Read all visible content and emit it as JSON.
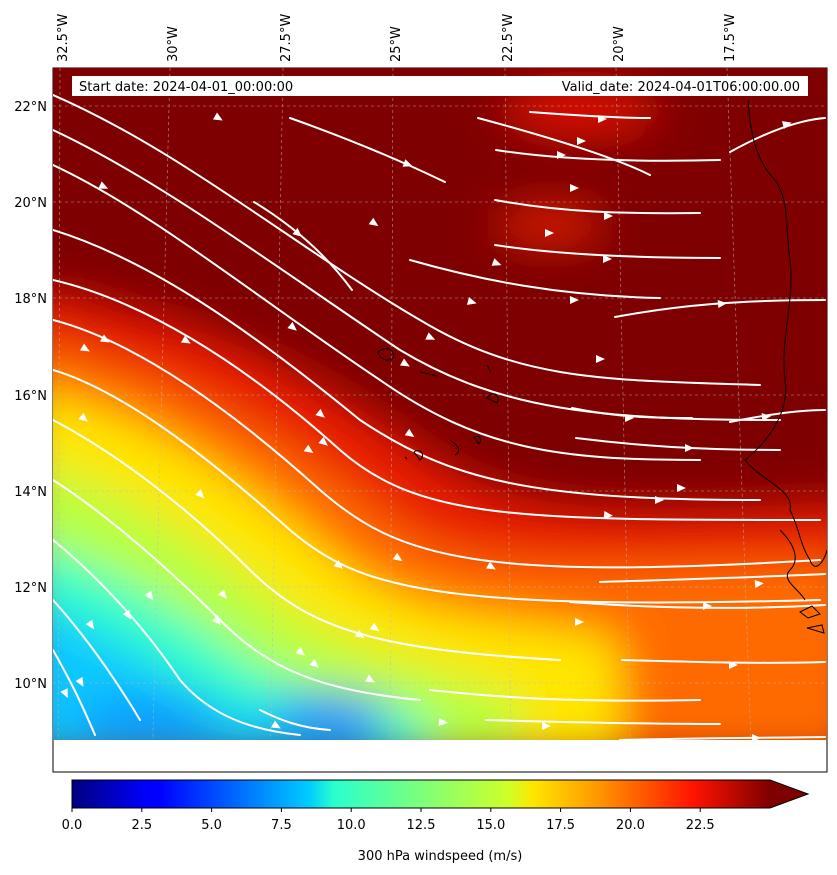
{
  "header": {
    "start_date": "Start date: 2024-04-01_00:00:00",
    "valid_date": "Valid_date: 2024-04-01T06:00:00.00"
  },
  "map": {
    "lon_labels": [
      "32.5°W",
      "30°W",
      "27.5°W",
      "25°W",
      "22.5°W",
      "20°W",
      "17.5°W"
    ],
    "lat_labels": [
      "22°N",
      "20°N",
      "18°N",
      "16°N",
      "14°N",
      "12°N",
      "10°N"
    ],
    "colors": {
      "max": "#7f0000",
      "calm": "#0a82ff",
      "mid": "#ffff10",
      "streamlines": "#ffffff",
      "coastline": "#000000"
    }
  },
  "colorbar": {
    "label": "300 hPa windspeed (m/s)",
    "ticks": [
      "0.0",
      "2.5",
      "5.0",
      "7.5",
      "10.0",
      "12.5",
      "15.0",
      "17.5",
      "20.0",
      "22.5"
    ],
    "min": 0,
    "max": 25,
    "extend": "max"
  }
}
